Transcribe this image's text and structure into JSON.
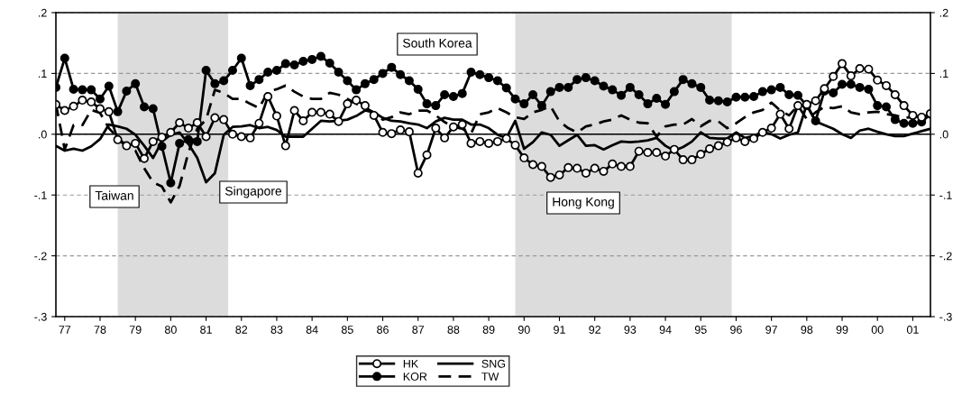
{
  "chart_data": {
    "type": "line",
    "x": [
      1976.75,
      1977,
      1977.25,
      1977.5,
      1977.75,
      1978,
      1978.25,
      1978.5,
      1978.75,
      1979,
      1979.25,
      1979.5,
      1979.75,
      1980,
      1980.25,
      1980.5,
      1980.75,
      1981,
      1981.25,
      1981.5,
      1981.75,
      1982,
      1982.25,
      1982.5,
      1982.75,
      1983,
      1983.25,
      1983.5,
      1983.75,
      1984,
      1984.25,
      1984.5,
      1984.75,
      1985,
      1985.25,
      1985.5,
      1985.75,
      1986,
      1986.25,
      1986.5,
      1986.75,
      1987,
      1987.25,
      1987.5,
      1987.75,
      1988,
      1988.25,
      1988.5,
      1988.75,
      1989,
      1989.25,
      1989.5,
      1989.75,
      1990,
      1990.25,
      1990.5,
      1990.75,
      1991,
      1991.25,
      1991.5,
      1991.75,
      1992,
      1992.25,
      1992.5,
      1992.75,
      1993,
      1993.25,
      1993.5,
      1993.75,
      1994,
      1994.25,
      1994.5,
      1994.75,
      1995,
      1995.25,
      1995.5,
      1995.75,
      1996,
      1996.25,
      1996.5,
      1996.75,
      1997,
      1997.25,
      1997.5,
      1997.75,
      1998,
      1998.25,
      1998.5,
      1998.75,
      1999,
      1999.25,
      1999.5,
      1999.75,
      2000,
      2000.25,
      2000.5,
      2000.75,
      2001,
      2001.25,
      2001.5
    ],
    "series": [
      {
        "name": "HK",
        "color": "#000000",
        "marker": "circle",
        "line_style": "solid",
        "values": [
          0.049,
          0.039,
          0.046,
          0.056,
          0.053,
          0.042,
          0.037,
          -0.009,
          -0.019,
          -0.015,
          -0.04,
          -0.012,
          -0.005,
          0.003,
          0.019,
          0.01,
          0.019,
          -0.004,
          0.027,
          0.024,
          0,
          -0.004,
          -0.006,
          0.018,
          0.062,
          0.03,
          -0.019,
          0.039,
          0.022,
          0.036,
          0.036,
          0.033,
          0.021,
          0.05,
          0.056,
          0.047,
          0.031,
          0.003,
          0.001,
          0.007,
          0.004,
          -0.064,
          -0.034,
          0.01,
          -0.006,
          0.012,
          0.016,
          -0.015,
          -0.012,
          -0.015,
          -0.012,
          -0.007,
          -0.018,
          -0.039,
          -0.05,
          -0.053,
          -0.071,
          -0.067,
          -0.055,
          -0.056,
          -0.064,
          -0.056,
          -0.061,
          -0.049,
          -0.053,
          -0.053,
          -0.028,
          -0.03,
          -0.03,
          -0.036,
          -0.025,
          -0.042,
          -0.042,
          -0.033,
          -0.024,
          -0.019,
          -0.013,
          -0.006,
          -0.012,
          -0.007,
          0.003,
          0.01,
          0.033,
          0.009,
          0.047,
          0.049,
          0.055,
          0.075,
          0.095,
          0.116,
          0.096,
          0.108,
          0.107,
          0.089,
          0.08,
          0.065,
          0.047,
          0.031,
          0.028,
          0.034
        ]
      },
      {
        "name": "KOR",
        "color": "#000000",
        "marker": "circle",
        "line_style": "solid",
        "values": [
          0.077,
          0.125,
          0.074,
          0.073,
          0.073,
          0.058,
          0.079,
          0.037,
          0.071,
          0.083,
          0.045,
          0.042,
          -0.02,
          -0.08,
          -0.015,
          -0.009,
          -0.012,
          0.105,
          0.083,
          0.088,
          0.105,
          0.125,
          0.08,
          0.09,
          0.102,
          0.105,
          0.116,
          0.114,
          0.12,
          0.123,
          0.128,
          0.117,
          0.102,
          0.088,
          0.073,
          0.083,
          0.09,
          0.1,
          0.11,
          0.098,
          0.088,
          0.074,
          0.05,
          0.047,
          0.065,
          0.062,
          0.067,
          0.102,
          0.098,
          0.093,
          0.088,
          0.076,
          0.058,
          0.05,
          0.065,
          0.047,
          0.07,
          0.077,
          0.077,
          0.09,
          0.093,
          0.088,
          0.079,
          0.073,
          0.064,
          0.077,
          0.065,
          0.05,
          0.059,
          0.049,
          0.07,
          0.09,
          0.083,
          0.077,
          0.056,
          0.055,
          0.053,
          0.061,
          0.061,
          0.062,
          0.07,
          0.073,
          0.077,
          0.065,
          0.064,
          0.047,
          0.022,
          0.071,
          0.068,
          0.082,
          0.082,
          0.077,
          0.074,
          0.047,
          0.045,
          0.024,
          0.018,
          0.018,
          0.02,
          0.033
        ]
      },
      {
        "name": "SNG",
        "color": "#000000",
        "marker": "none",
        "line_style": "solid",
        "values": [
          -0.019,
          -0.027,
          -0.024,
          -0.027,
          -0.02,
          -0.008,
          0.016,
          0.013,
          0.009,
          -0.001,
          -0.019,
          -0.039,
          -0.012,
          -0.001,
          0.003,
          -0.016,
          -0.039,
          -0.079,
          -0.064,
          -0.001,
          0.012,
          0.013,
          0.015,
          0.01,
          0.012,
          0.007,
          -0.004,
          -0.004,
          -0.004,
          0.009,
          0.022,
          0.021,
          0.022,
          0.024,
          0.03,
          0.039,
          0.036,
          0.027,
          0.022,
          0.021,
          0.018,
          0.016,
          0.01,
          0.021,
          0.027,
          0.024,
          0.024,
          0.016,
          0.016,
          0.01,
          -0.001,
          -0.006,
          0.022,
          -0.024,
          -0.013,
          0.003,
          -0.001,
          -0.019,
          -0.01,
          -0.001,
          -0.019,
          -0.018,
          -0.025,
          -0.018,
          -0.012,
          -0.013,
          -0.012,
          -0.01,
          -0.006,
          -0.019,
          -0.027,
          -0.021,
          -0.012,
          0.003,
          -0.006,
          -0.007,
          -0.007,
          0.003,
          -0.006,
          -0.003,
          0.004,
          0,
          -0.007,
          -0.001,
          0.003,
          0.049,
          0.021,
          0.015,
          0.009,
          0,
          -0.006,
          0.006,
          0.009,
          0.004,
          0,
          -0.003,
          -0.003,
          0.001,
          0.005,
          0.009
        ]
      },
      {
        "name": "TW",
        "color": "#000000",
        "marker": "none",
        "line_style": "dashed",
        "values": [
          0.05,
          -0.025,
          0.015,
          0.015,
          0.04,
          0.035,
          0.01,
          -0.006,
          -0.019,
          -0.027,
          -0.056,
          -0.079,
          -0.086,
          -0.112,
          -0.085,
          -0.03,
          0.009,
          0.024,
          0.073,
          0.068,
          0.058,
          0.058,
          0.05,
          0.043,
          0.07,
          0.074,
          0.08,
          0.07,
          0.062,
          0.058,
          0.058,
          0.068,
          0.065,
          0.058,
          0.05,
          0.043,
          0.036,
          0.024,
          0.028,
          0.036,
          0.033,
          0.039,
          0.039,
          0.031,
          0.02,
          0.012,
          0.009,
          0.001,
          0.033,
          0.036,
          0.043,
          0.036,
          0.028,
          0.025,
          0.036,
          0.04,
          0.046,
          0.021,
          0.01,
          0.003,
          0.013,
          0.016,
          0.021,
          0.024,
          0.031,
          0.024,
          0.019,
          0.018,
          -0.004,
          0.013,
          0.016,
          0.016,
          0.025,
          0.013,
          0.022,
          0.021,
          0.01,
          0.018,
          0.028,
          0.036,
          0.04,
          0.052,
          0.039,
          0.031,
          0.047,
          0.025,
          0.036,
          0.045,
          0.043,
          0.046,
          0.036,
          0.033,
          0.036,
          0.037,
          0.033,
          0.031,
          0.027,
          0.028,
          0.03,
          0.028
        ]
      }
    ],
    "xlim": [
      1976.75,
      2001.5
    ],
    "xticks": [
      {
        "value": 1977,
        "label": "77"
      },
      {
        "value": 1978,
        "label": "78"
      },
      {
        "value": 1979,
        "label": "79"
      },
      {
        "value": 1980,
        "label": "80"
      },
      {
        "value": 1981,
        "label": "81"
      },
      {
        "value": 1982,
        "label": "82"
      },
      {
        "value": 1983,
        "label": "83"
      },
      {
        "value": 1984,
        "label": "84"
      },
      {
        "value": 1985,
        "label": "85"
      },
      {
        "value": 1986,
        "label": "86"
      },
      {
        "value": 1987,
        "label": "87"
      },
      {
        "value": 1988,
        "label": "88"
      },
      {
        "value": 1989,
        "label": "89"
      },
      {
        "value": 1990,
        "label": "90"
      },
      {
        "value": 1991,
        "label": "91"
      },
      {
        "value": 1992,
        "label": "92"
      },
      {
        "value": 1993,
        "label": "93"
      },
      {
        "value": 1994,
        "label": "94"
      },
      {
        "value": 1995,
        "label": "95"
      },
      {
        "value": 1996,
        "label": "96"
      },
      {
        "value": 1997,
        "label": "97"
      },
      {
        "value": 1998,
        "label": "98"
      },
      {
        "value": 1999,
        "label": "99"
      },
      {
        "value": 2000,
        "label": "00"
      },
      {
        "value": 2001,
        "label": "01"
      }
    ],
    "ylim": [
      -0.3,
      0.2
    ],
    "yticks": [
      {
        "value": -0.3,
        "label": "-.3"
      },
      {
        "value": -0.2,
        "label": "-.2"
      },
      {
        "value": -0.1,
        "label": "-.1"
      },
      {
        "value": 0,
        "label": ".0"
      },
      {
        "value": 0.1,
        "label": ".1"
      },
      {
        "value": 0.2,
        "label": ".2"
      }
    ],
    "y2lim": [
      -0.3,
      0.2
    ],
    "y2ticks": [
      {
        "value": -0.3,
        "label": "-.3"
      },
      {
        "value": -0.2,
        "label": "-.2"
      },
      {
        "value": -0.1,
        "label": "-.1"
      },
      {
        "value": 0,
        "label": ".0"
      },
      {
        "value": 0.1,
        "label": ".1"
      },
      {
        "value": 0.2,
        "label": ".2"
      }
    ],
    "grid": "y",
    "ref_lines": [
      {
        "axis": "y",
        "value": 0,
        "color": "#000000",
        "line_style": "solid"
      }
    ],
    "bands": [
      {
        "axis": "x",
        "from": 1978.5,
        "to": 1981.625,
        "color": "#dcdcdc"
      },
      {
        "axis": "x",
        "from": 1989.75,
        "to": 1995.875,
        "color": "#dcdcdc"
      }
    ],
    "annotations": [
      "Taiwan",
      "Singapore",
      "South Korea",
      "Hong Kong"
    ],
    "legend": "bottom"
  }
}
